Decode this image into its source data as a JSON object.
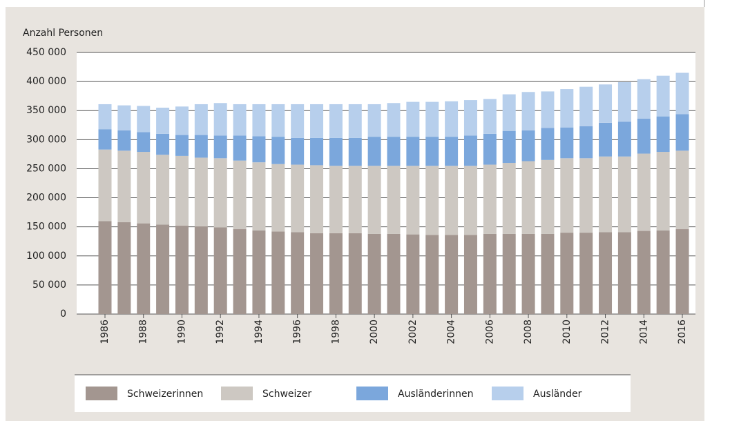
{
  "chart_data": {
    "type": "stacked-bar",
    "y_axis_label": "Anzahl Personen",
    "categories": [
      "1986",
      null,
      "1988",
      null,
      "1990",
      null,
      "1992",
      null,
      "1994",
      null,
      "1996",
      null,
      "1998",
      null,
      "2000",
      null,
      "2002",
      null,
      "2004",
      null,
      "2006",
      null,
      "2008",
      null,
      "2010",
      null,
      "2012",
      null,
      "2014",
      null,
      "2016"
    ],
    "series": [
      {
        "name": "Schweizerinnen",
        "color": "#a39690",
        "values": [
          160000,
          158000,
          156000,
          154000,
          152000,
          151000,
          149000,
          146000,
          144000,
          142000,
          141000,
          139000,
          139000,
          139000,
          138000,
          138000,
          137000,
          136000,
          136000,
          136000,
          138000,
          138000,
          138000,
          138000,
          140000,
          140000,
          141000,
          141000,
          143000,
          144000,
          146000
        ]
      },
      {
        "name": "Schweizer",
        "color": "#cdc8c2",
        "values": [
          123000,
          123000,
          123000,
          120000,
          120000,
          118000,
          119000,
          118000,
          117000,
          116000,
          116000,
          117000,
          116000,
          116000,
          117000,
          117000,
          118000,
          119000,
          119000,
          119000,
          119000,
          122000,
          125000,
          127000,
          128000,
          128000,
          130000,
          130000,
          133000,
          135000,
          135000
        ]
      },
      {
        "name": "Ausländerinnen",
        "color": "#7ba7dc",
        "values": [
          35000,
          35000,
          34000,
          36000,
          36000,
          39000,
          39000,
          43000,
          45000,
          47000,
          46000,
          47000,
          48000,
          48000,
          50000,
          50000,
          50000,
          50000,
          50000,
          52000,
          53000,
          55000,
          53000,
          55000,
          53000,
          55000,
          58000,
          60000,
          60000,
          61000,
          63000
        ]
      },
      {
        "name": "Ausländer",
        "color": "#b7cfec",
        "values": [
          43000,
          43000,
          45000,
          45000,
          49000,
          53000,
          56000,
          54000,
          55000,
          56000,
          58000,
          58000,
          58000,
          58000,
          56000,
          58000,
          60000,
          60000,
          61000,
          61000,
          60000,
          63000,
          66000,
          63000,
          66000,
          68000,
          66000,
          68000,
          68000,
          70000,
          71000
        ]
      }
    ],
    "ylim": [
      0,
      450000
    ],
    "yticks": [
      0,
      {
        "value": 50000,
        "label": "50 000"
      },
      {
        "value": 100000,
        "label": "100 000"
      },
      {
        "value": 150000,
        "label": "150 000"
      },
      {
        "value": 200000,
        "label": "200 000"
      },
      {
        "value": 250000,
        "label": "250 000"
      },
      {
        "value": 300000,
        "label": "300 000"
      },
      {
        "value": 350000,
        "label": "350 000"
      },
      {
        "value": 400000,
        "label": "400 000"
      },
      {
        "value": 450000,
        "label": "450 000"
      }
    ],
    "grid": true
  }
}
